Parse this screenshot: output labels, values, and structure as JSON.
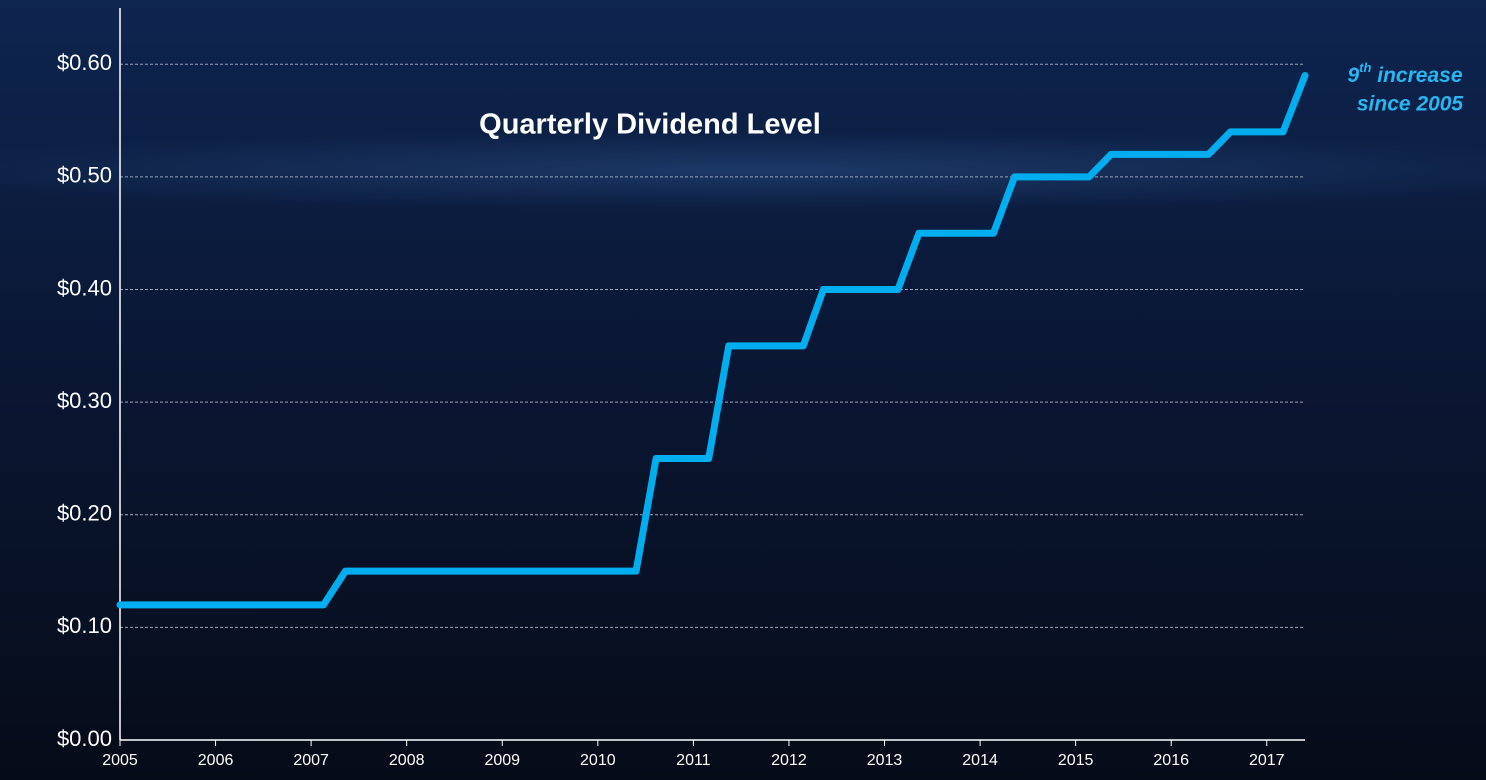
{
  "chart_data": {
    "type": "line",
    "title": "Quarterly Dividend Level",
    "annotation": [
      "9",
      "th",
      " increase",
      "since 2005"
    ],
    "x": [
      2005,
      2007.13,
      2007.36,
      2010.4,
      2010.61,
      2011.16,
      2011.37,
      2012.15,
      2012.36,
      2013.14,
      2013.36,
      2014.14,
      2014.36,
      2015.14,
      2015.37,
      2016.39,
      2016.62,
      2017.17,
      2017.4
    ],
    "series": [
      {
        "name": "Quarterly Dividend",
        "color": "#00aeef",
        "values": [
          0.12,
          0.12,
          0.15,
          0.15,
          0.25,
          0.25,
          0.35,
          0.35,
          0.4,
          0.4,
          0.45,
          0.45,
          0.5,
          0.5,
          0.52,
          0.52,
          0.54,
          0.54,
          0.59
        ]
      }
    ],
    "xlim": [
      2005,
      2017.4
    ],
    "xticks": [
      2005,
      2006,
      2007,
      2008,
      2009,
      2010,
      2011,
      2012,
      2013,
      2014,
      2015,
      2016,
      2017
    ],
    "ylim": [
      0,
      0.65
    ],
    "yticks": [
      {
        "value": 0,
        "label": "$0.00"
      },
      {
        "value": 0.1,
        "label": "$0.10"
      },
      {
        "value": 0.2,
        "label": "$0.20"
      },
      {
        "value": 0.3,
        "label": "$0.30"
      },
      {
        "value": 0.4,
        "label": "$0.40"
      },
      {
        "value": 0.5,
        "label": "$0.50"
      },
      {
        "value": 0.6,
        "label": "$0.60"
      }
    ],
    "grid": true
  }
}
